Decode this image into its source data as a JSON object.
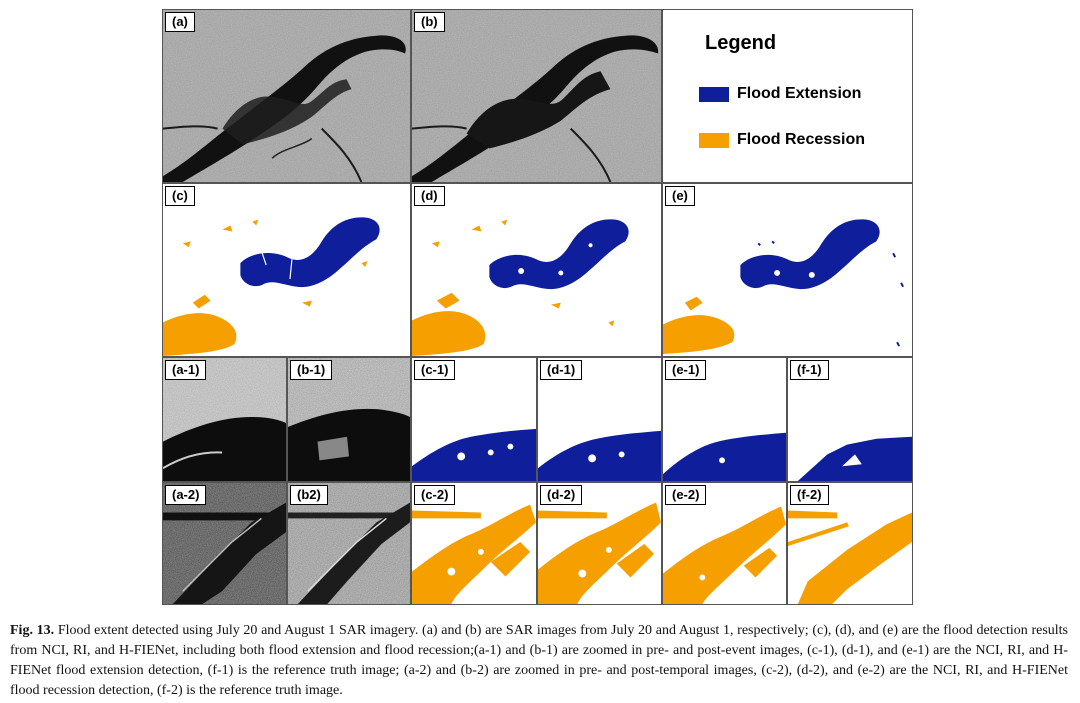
{
  "colors": {
    "flood_extension": "#0f1f9c",
    "flood_recession": "#f5a000",
    "sar_dark": "#111111"
  },
  "panels": {
    "a": "(a)",
    "b": "(b)",
    "c": "(c)",
    "d": "(d)",
    "e": "(e)",
    "a1": "(a-1)",
    "b1": "(b-1)",
    "c1": "(c-1)",
    "d1": "(d-1)",
    "e1": "(e-1)",
    "f1": "(f-1)",
    "a2": "(a-2)",
    "b2": "(b2)",
    "c2": "(c-2)",
    "d2": "(d-2)",
    "e2": "(e-2)",
    "f2": "(f-2)"
  },
  "legend": {
    "title": "Legend",
    "items": [
      {
        "label": "Flood Extension",
        "color_key": "flood_extension"
      },
      {
        "label": "Flood Recession",
        "color_key": "flood_recession"
      }
    ]
  },
  "caption": {
    "figure_label": "Fig. 13.",
    "text": "Flood extent detected using July 20 and August 1 SAR imagery. (a) and (b) are SAR images from July 20 and August 1, respectively; (c), (d), and (e) are the flood detection results from NCI, RI, and H-FIENet, including both flood extension and flood recession;(a-1) and (b-1) are zoomed in pre- and post-event images, (c-1), (d-1), and (e-1) are the NCI, RI, and H-FIENet flood extension detection, (f-1) is the reference truth image; (a-2) and (b-2) are zoomed in pre- and post-temporal images, (c-2), (d-2), and (e-2) are the NCI, RI, and H-FIENet flood recession detection, (f-2) is the reference truth image."
  }
}
